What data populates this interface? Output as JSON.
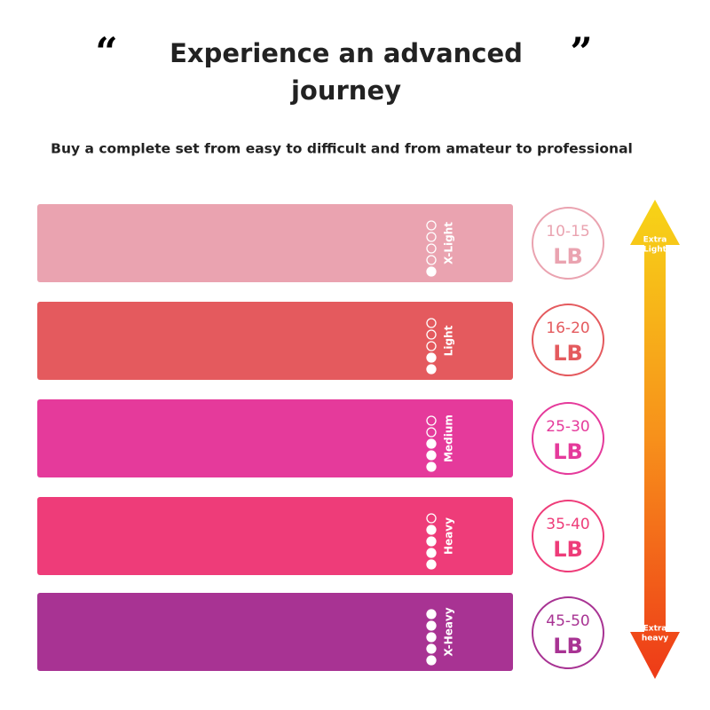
{
  "header": {
    "quote_open": "“",
    "quote_close": "”",
    "title": [
      "Experience an advanced",
      "journey"
    ],
    "subtitle": "Buy a complete set from easy to difficult and from amateur to professional"
  },
  "scale_max": 5,
  "bands": [
    {
      "label": "X-Light",
      "level": 1,
      "weight": "10-15",
      "unit": "LB",
      "color": "#eaa3b0"
    },
    {
      "label": "Light",
      "level": 2,
      "weight": "16-20",
      "unit": "LB",
      "color": "#e45a5e"
    },
    {
      "label": "Medium",
      "level": 3,
      "weight": "25-30",
      "unit": "LB",
      "color": "#e53a9b"
    },
    {
      "label": "Heavy",
      "level": 4,
      "weight": "35-40",
      "unit": "LB",
      "color": "#ee3c79"
    },
    {
      "label": "X-Heavy",
      "level": 5,
      "weight": "45-50",
      "unit": "LB",
      "color": "#a83393"
    }
  ],
  "arrow": {
    "top": [
      "Extra",
      "Light"
    ],
    "bottom": [
      "Extra",
      "heavy"
    ]
  }
}
